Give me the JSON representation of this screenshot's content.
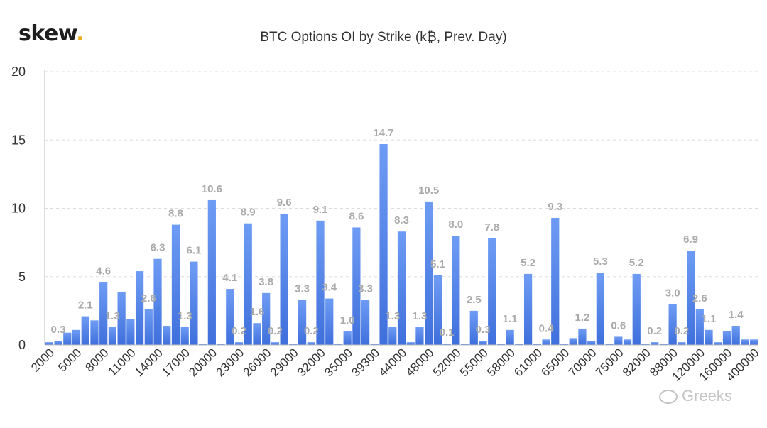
{
  "logo": {
    "text": "skew",
    "dot": "."
  },
  "watermark": "Greeks",
  "colors": {
    "bar_top": "#6e9cf4",
    "bar_bottom": "#3f6fdc",
    "grid": "#dddddd",
    "label": "#aaaaaa"
  },
  "chart_data": {
    "type": "bar",
    "title": "BTC Options OI by Strike (k₿, Prev. Day)",
    "xlabel": "",
    "ylabel": "",
    "ylim": [
      0,
      20
    ],
    "yticks": [
      0,
      5,
      10,
      15,
      20
    ],
    "grid": true,
    "legend": "none",
    "xtick_labels": [
      "2000",
      "5000",
      "8000",
      "11000",
      "14000",
      "17000",
      "20000",
      "23000",
      "26000",
      "29000",
      "32000",
      "35000",
      "39300",
      "44000",
      "48000",
      "52000",
      "55000",
      "58000",
      "61000",
      "65000",
      "70000",
      "75000",
      "82000",
      "88000",
      "120000",
      "160000",
      "400000"
    ],
    "values": [
      0.2,
      0.3,
      0.9,
      1.1,
      2.1,
      1.8,
      4.6,
      1.3,
      3.9,
      1.9,
      5.4,
      2.6,
      6.3,
      1.4,
      8.8,
      1.3,
      6.1,
      0.1,
      10.6,
      0.1,
      4.1,
      0.2,
      8.9,
      1.6,
      3.8,
      0.2,
      9.6,
      0.1,
      3.3,
      0.2,
      9.1,
      3.4,
      0.1,
      1.0,
      8.6,
      3.3,
      0.1,
      14.7,
      1.3,
      8.3,
      0.2,
      1.3,
      10.5,
      5.1,
      0.1,
      8.0,
      0.1,
      2.5,
      0.3,
      7.8,
      0.1,
      1.1,
      0.1,
      5.2,
      0.1,
      0.4,
      9.3,
      0.1,
      0.5,
      1.2,
      0.3,
      5.3,
      0.1,
      0.6,
      0.4,
      5.2,
      0.1,
      0.2,
      0.1,
      3.0,
      0.2,
      6.9,
      2.6,
      1.1,
      0.2,
      1.0,
      1.4,
      0.4,
      0.4
    ],
    "data_labels": [
      {
        "index": 1,
        "text": "0.3"
      },
      {
        "index": 4,
        "text": "2.1"
      },
      {
        "index": 6,
        "text": "4.6"
      },
      {
        "index": 7,
        "text": "1.3"
      },
      {
        "index": 11,
        "text": "2.6"
      },
      {
        "index": 12,
        "text": "6.3"
      },
      {
        "index": 14,
        "text": "8.8"
      },
      {
        "index": 15,
        "text": "1.3"
      },
      {
        "index": 16,
        "text": "6.1"
      },
      {
        "index": 18,
        "text": "10.6"
      },
      {
        "index": 20,
        "text": "4.1"
      },
      {
        "index": 21,
        "text": "0.2"
      },
      {
        "index": 22,
        "text": "8.9"
      },
      {
        "index": 23,
        "text": "1.6"
      },
      {
        "index": 24,
        "text": "3.8"
      },
      {
        "index": 25,
        "text": "0.2"
      },
      {
        "index": 26,
        "text": "9.6"
      },
      {
        "index": 28,
        "text": "3.3"
      },
      {
        "index": 29,
        "text": "0.2"
      },
      {
        "index": 30,
        "text": "9.1"
      },
      {
        "index": 31,
        "text": "3.4"
      },
      {
        "index": 33,
        "text": "1.0"
      },
      {
        "index": 34,
        "text": "8.6"
      },
      {
        "index": 35,
        "text": "3.3"
      },
      {
        "index": 37,
        "text": "14.7"
      },
      {
        "index": 38,
        "text": "1.3"
      },
      {
        "index": 39,
        "text": "8.3"
      },
      {
        "index": 41,
        "text": "1.3"
      },
      {
        "index": 42,
        "text": "10.5"
      },
      {
        "index": 43,
        "text": "5.1"
      },
      {
        "index": 44,
        "text": "0.1"
      },
      {
        "index": 45,
        "text": "8.0"
      },
      {
        "index": 47,
        "text": "2.5"
      },
      {
        "index": 48,
        "text": "0.3"
      },
      {
        "index": 49,
        "text": "7.8"
      },
      {
        "index": 51,
        "text": "1.1"
      },
      {
        "index": 53,
        "text": "5.2"
      },
      {
        "index": 55,
        "text": "0.4"
      },
      {
        "index": 56,
        "text": "9.3"
      },
      {
        "index": 59,
        "text": "1.2"
      },
      {
        "index": 61,
        "text": "5.3"
      },
      {
        "index": 63,
        "text": "0.6"
      },
      {
        "index": 65,
        "text": "5.2"
      },
      {
        "index": 67,
        "text": "0.2"
      },
      {
        "index": 69,
        "text": "3.0"
      },
      {
        "index": 70,
        "text": "0.2"
      },
      {
        "index": 71,
        "text": "6.9"
      },
      {
        "index": 72,
        "text": "2.6"
      },
      {
        "index": 73,
        "text": "1.1"
      },
      {
        "index": 76,
        "text": "1.4"
      }
    ]
  }
}
